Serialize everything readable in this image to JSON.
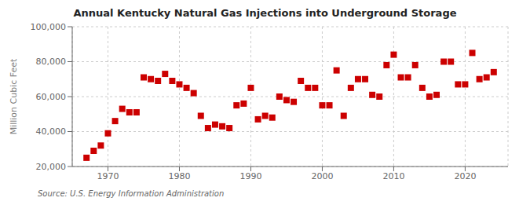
{
  "chart_data": {
    "type": "scatter",
    "title": "Annual Kentucky Natural Gas Injections into Underground Storage",
    "ylabel": "Million Cubic Feet",
    "annotation": "Source: U.S. Energy Information Administration",
    "color": "#cc0000",
    "marker": "square",
    "grid": true,
    "x": [
      1967,
      1968,
      1969,
      1970,
      1971,
      1972,
      1973,
      1974,
      1975,
      1976,
      1977,
      1978,
      1979,
      1980,
      1981,
      1982,
      1983,
      1984,
      1985,
      1986,
      1987,
      1988,
      1989,
      1990,
      1991,
      1992,
      1993,
      1994,
      1995,
      1996,
      1997,
      1998,
      1999,
      2000,
      2001,
      2002,
      2003,
      2004,
      2005,
      2006,
      2007,
      2008,
      2009,
      2010,
      2011,
      2012,
      2013,
      2014,
      2015,
      2016,
      2017,
      2018,
      2019,
      2020,
      2021,
      2022,
      2023,
      2024
    ],
    "values": [
      25000,
      29000,
      32000,
      39000,
      46000,
      53000,
      51000,
      51000,
      71000,
      70000,
      69000,
      73000,
      69000,
      67000,
      65000,
      62000,
      49000,
      42000,
      44000,
      43000,
      42000,
      55000,
      56000,
      65000,
      47000,
      49000,
      48000,
      60000,
      58000,
      57000,
      69000,
      65000,
      65000,
      55000,
      55000,
      75000,
      49000,
      65000,
      70000,
      70000,
      61000,
      60000,
      78000,
      84000,
      71000,
      71000,
      78000,
      65000,
      60000,
      61000,
      80000,
      80000,
      67000,
      67000,
      85000,
      70000,
      71000,
      74000
    ],
    "xlim": [
      1965,
      2026
    ],
    "xticks": [
      1970,
      1980,
      1990,
      2000,
      2010,
      2020
    ],
    "ylim": [
      20000,
      100000
    ],
    "yticks": [
      {
        "value": 20000,
        "label": "20,000"
      },
      {
        "value": 40000,
        "label": "40,000"
      },
      {
        "value": 60000,
        "label": "60,000"
      },
      {
        "value": 80000,
        "label": "80,000"
      },
      {
        "value": 100000,
        "label": "100,000"
      }
    ]
  }
}
